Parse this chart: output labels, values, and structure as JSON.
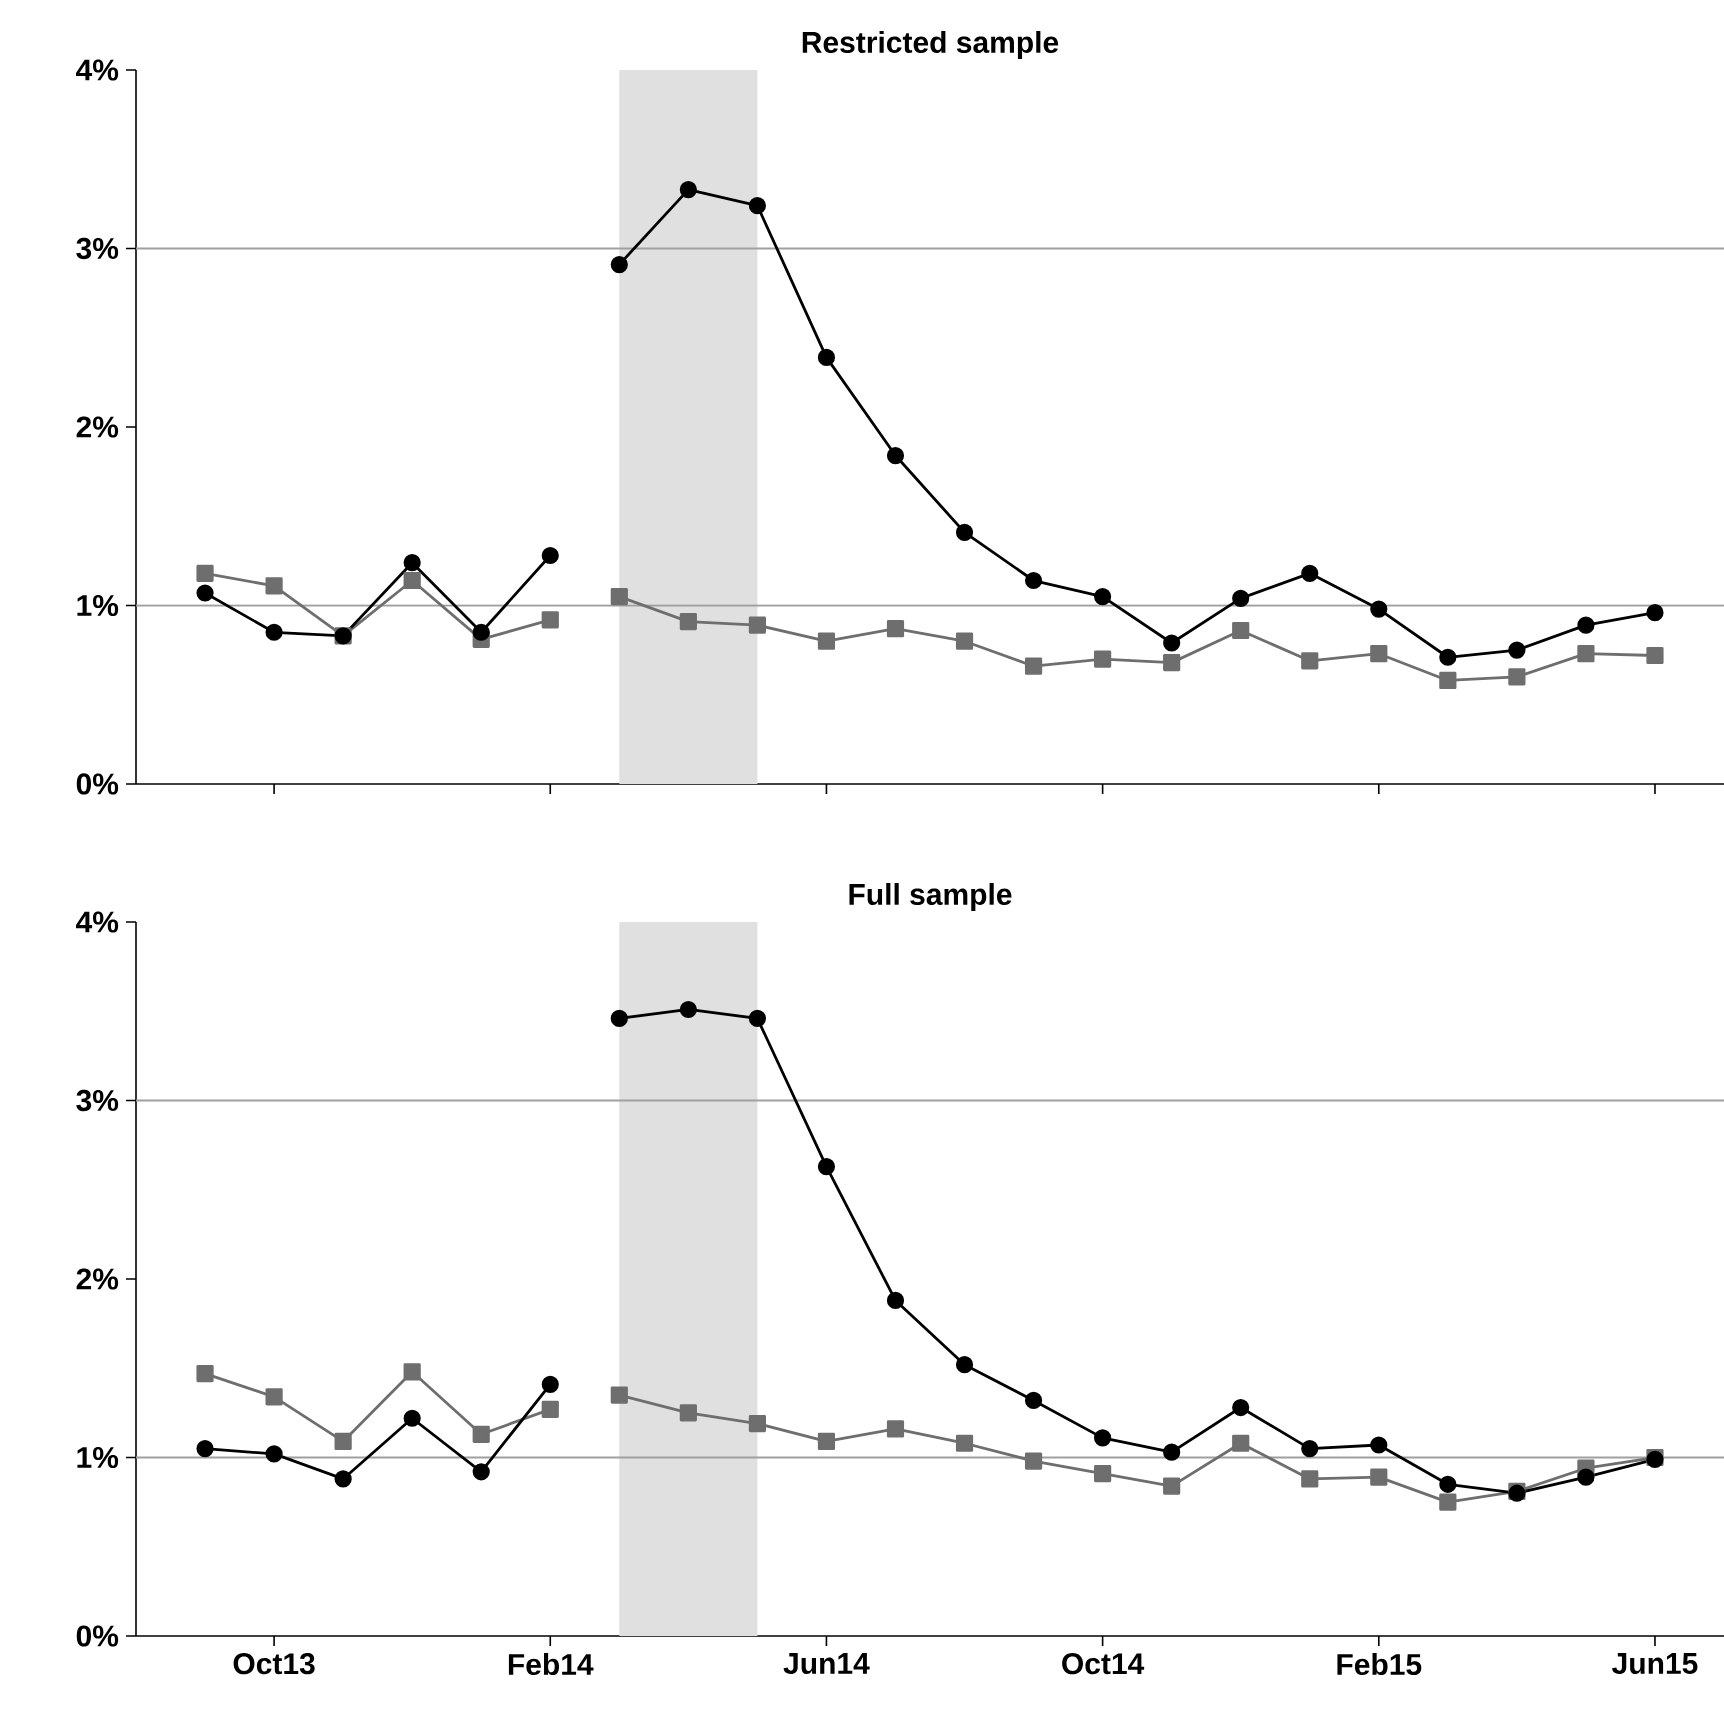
{
  "chart_data": [
    {
      "type": "line",
      "title": "Restricted sample",
      "xlim": [
        "2013-08",
        "2015-07"
      ],
      "ylim": [
        0,
        4
      ],
      "xticks": [
        {
          "value": "2013-10",
          "label": null
        },
        {
          "value": "2014-02",
          "label": null
        },
        {
          "value": "2014-06",
          "label": null
        },
        {
          "value": "2014-10",
          "label": null
        },
        {
          "value": "2015-02",
          "label": null
        },
        {
          "value": "2015-06",
          "label": null
        }
      ],
      "yticks": [
        {
          "value": 0,
          "label": "0%"
        },
        {
          "value": 1,
          "label": "1%"
        },
        {
          "value": 2,
          "label": "2%"
        },
        {
          "value": 3,
          "label": "3%"
        },
        {
          "value": 4,
          "label": "4%"
        }
      ],
      "tick_labels": "y",
      "grid": false,
      "ref_lines": [
        {
          "axis": "y",
          "value": 1,
          "color": "#a0a0a0"
        },
        {
          "axis": "y",
          "value": 3,
          "color": "#a0a0a0"
        }
      ],
      "bands": [
        {
          "axis": "x",
          "from": "2014-03",
          "to": "2014-05",
          "color": "#e0e0e0"
        }
      ],
      "series": [
        {
          "color": "#6e6e6e",
          "marker": "square",
          "x": [
            "2013-09",
            "2013-10",
            "2013-11",
            "2013-12",
            "2014-01",
            "2014-02"
          ],
          "values": [
            1.18,
            1.11,
            0.83,
            1.14,
            0.81,
            0.92
          ]
        },
        {
          "color": "#6e6e6e",
          "marker": "square",
          "x": [
            "2014-03",
            "2014-04",
            "2014-05",
            "2014-06",
            "2014-07",
            "2014-08",
            "2014-09",
            "2014-10",
            "2014-11",
            "2014-12",
            "2015-01",
            "2015-02",
            "2015-03",
            "2015-04",
            "2015-05",
            "2015-06"
          ],
          "values": [
            1.05,
            0.91,
            0.89,
            0.8,
            0.87,
            0.8,
            0.66,
            0.7,
            0.68,
            0.86,
            0.69,
            0.73,
            0.58,
            0.6,
            0.73,
            0.72
          ]
        },
        {
          "color": "#000000",
          "marker": "circle",
          "x": [
            "2013-09",
            "2013-10",
            "2013-11",
            "2013-12",
            "2014-01",
            "2014-02"
          ],
          "values": [
            1.07,
            0.85,
            0.83,
            1.24,
            0.85,
            1.28
          ]
        },
        {
          "color": "#000000",
          "marker": "circle",
          "x": [
            "2014-03",
            "2014-04",
            "2014-05",
            "2014-06",
            "2014-07",
            "2014-08",
            "2014-09",
            "2014-10",
            "2014-11",
            "2014-12",
            "2015-01",
            "2015-02",
            "2015-03",
            "2015-04",
            "2015-05",
            "2015-06"
          ],
          "values": [
            2.91,
            3.33,
            3.24,
            2.39,
            1.84,
            1.41,
            1.14,
            1.05,
            0.79,
            1.04,
            1.18,
            0.98,
            0.71,
            0.75,
            0.89,
            0.96
          ]
        }
      ]
    },
    {
      "type": "line",
      "title": "Full sample",
      "xlim": [
        "2013-08",
        "2015-07"
      ],
      "ylim": [
        0,
        4
      ],
      "xticks": [
        {
          "value": "2013-10",
          "label": "Oct13"
        },
        {
          "value": "2014-02",
          "label": "Feb14"
        },
        {
          "value": "2014-06",
          "label": "Jun14"
        },
        {
          "value": "2014-10",
          "label": "Oct14"
        },
        {
          "value": "2015-02",
          "label": "Feb15"
        },
        {
          "value": "2015-06",
          "label": "Jun15"
        }
      ],
      "yticks": [
        {
          "value": 0,
          "label": "0%"
        },
        {
          "value": 1,
          "label": "1%"
        },
        {
          "value": 2,
          "label": "2%"
        },
        {
          "value": 3,
          "label": "3%"
        },
        {
          "value": 4,
          "label": "4%"
        }
      ],
      "grid": false,
      "ref_lines": [
        {
          "axis": "y",
          "value": 1,
          "color": "#a0a0a0"
        },
        {
          "axis": "y",
          "value": 3,
          "color": "#a0a0a0"
        }
      ],
      "bands": [
        {
          "axis": "x",
          "from": "2014-03",
          "to": "2014-05",
          "color": "#e0e0e0"
        }
      ],
      "series": [
        {
          "color": "#6e6e6e",
          "marker": "square",
          "x": [
            "2013-09",
            "2013-10",
            "2013-11",
            "2013-12",
            "2014-01",
            "2014-02"
          ],
          "values": [
            1.47,
            1.34,
            1.09,
            1.48,
            1.13,
            1.27
          ]
        },
        {
          "color": "#6e6e6e",
          "marker": "square",
          "x": [
            "2014-03",
            "2014-04",
            "2014-05",
            "2014-06",
            "2014-07",
            "2014-08",
            "2014-09",
            "2014-10",
            "2014-11",
            "2014-12",
            "2015-01",
            "2015-02",
            "2015-03",
            "2015-04",
            "2015-05",
            "2015-06"
          ],
          "values": [
            1.35,
            1.25,
            1.19,
            1.09,
            1.16,
            1.08,
            0.98,
            0.91,
            0.84,
            1.08,
            0.88,
            0.89,
            0.75,
            0.81,
            0.94,
            1.0
          ]
        },
        {
          "color": "#000000",
          "marker": "circle",
          "x": [
            "2013-09",
            "2013-10",
            "2013-11",
            "2013-12",
            "2014-01",
            "2014-02"
          ],
          "values": [
            1.05,
            1.02,
            0.88,
            1.22,
            0.92,
            1.41
          ]
        },
        {
          "color": "#000000",
          "marker": "circle",
          "x": [
            "2014-03",
            "2014-04",
            "2014-05",
            "2014-06",
            "2014-07",
            "2014-08",
            "2014-09",
            "2014-10",
            "2014-11",
            "2014-12",
            "2015-01",
            "2015-02",
            "2015-03",
            "2015-04",
            "2015-05",
            "2015-06"
          ],
          "values": [
            3.46,
            3.51,
            3.46,
            2.63,
            1.88,
            1.52,
            1.32,
            1.11,
            1.03,
            1.28,
            1.05,
            1.07,
            0.85,
            0.8,
            0.89,
            0.99
          ]
        }
      ]
    }
  ]
}
